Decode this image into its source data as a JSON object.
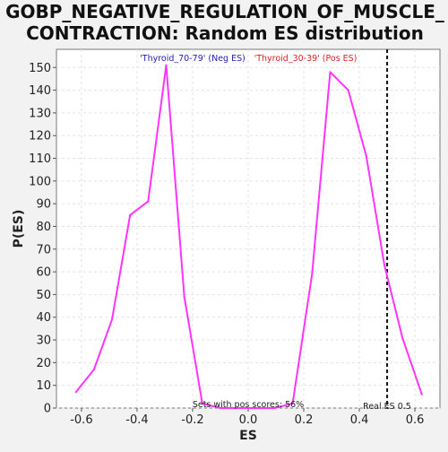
{
  "chart_data": {
    "type": "line",
    "title": [
      "GOBP_NEGATIVE_REGULATION_OF_MUSCLE_",
      "CONTRACTION: Random ES distribution"
    ],
    "xlabel": "ES",
    "ylabel": "P(ES)",
    "xlim": [
      -0.69,
      0.69
    ],
    "ylim": [
      0,
      158
    ],
    "xticks": [
      -0.6,
      -0.4,
      -0.2,
      0.0,
      0.2,
      0.4,
      0.6
    ],
    "xtick_labels": [
      "-0.6",
      "-0.4",
      "-0.2",
      "0.0",
      "0.2",
      "0.4",
      "0.6"
    ],
    "yticks": [
      0,
      10,
      20,
      30,
      40,
      50,
      60,
      70,
      80,
      90,
      100,
      110,
      120,
      130,
      140,
      150
    ],
    "ytick_labels": [
      "0",
      "10",
      "20",
      "30",
      "40",
      "50",
      "60",
      "70",
      "80",
      "90",
      "100",
      "110",
      "120",
      "130",
      "140",
      "150"
    ],
    "grid": true,
    "series": [
      {
        "color": "#ff33ff",
        "x": [
          -0.62,
          -0.555,
          -0.49,
          -0.425,
          -0.36,
          -0.295,
          -0.23,
          -0.165,
          -0.1,
          -0.035,
          0.03,
          0.095,
          0.16,
          0.23,
          0.295,
          0.36,
          0.425,
          0.49,
          0.555,
          0.625
        ],
        "y": [
          7,
          17,
          39,
          85,
          91,
          151,
          49,
          2,
          0,
          0,
          0,
          0,
          2,
          59,
          148,
          140,
          111,
          63,
          31,
          6
        ]
      }
    ],
    "annotations": {
      "neg_label": "'Thyroid_70-79' (Neg ES)",
      "pos_label": "'Thyroid_30-39' (Pos ES)",
      "neg_color": "#2222bb",
      "pos_color": "#dd2222",
      "pos_scores_text": "Sets with pos scores: 56%",
      "real_es_text": "Real ES 0.5",
      "real_es_value": 0.5
    }
  }
}
